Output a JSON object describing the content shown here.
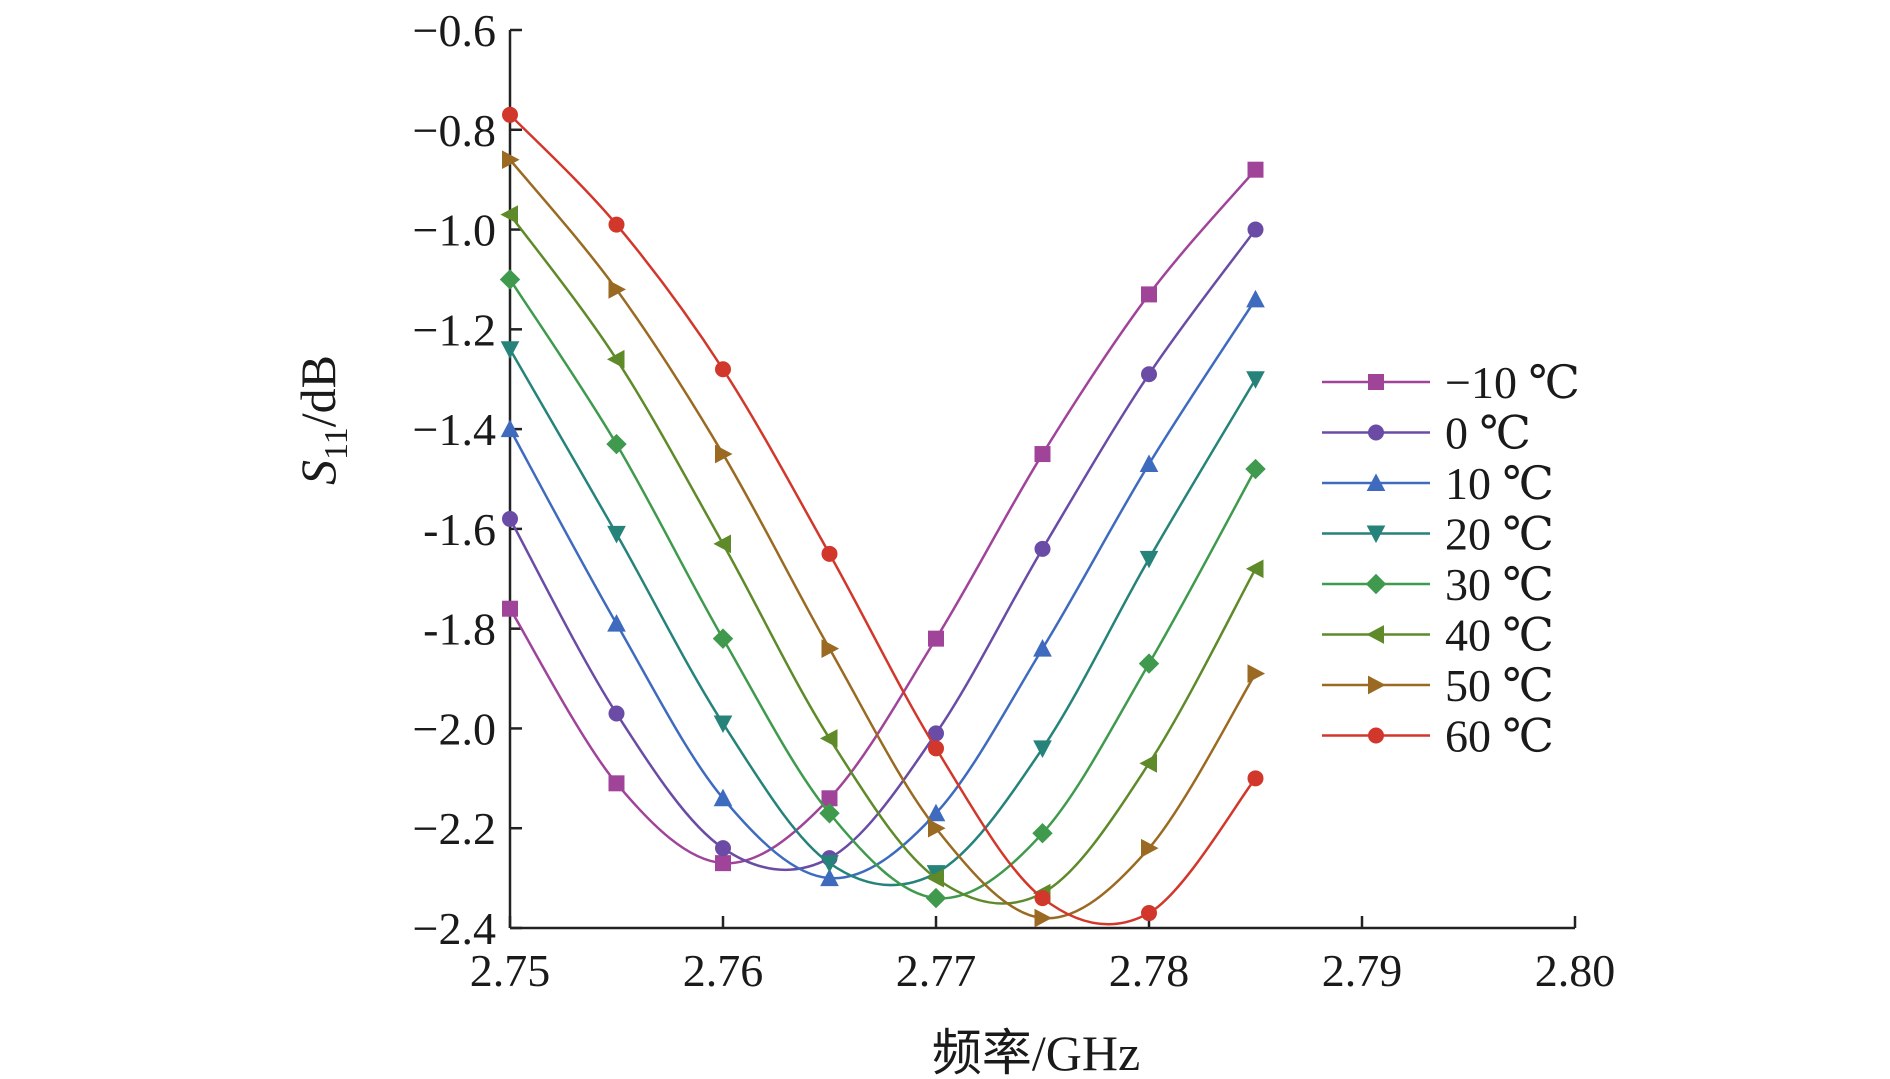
{
  "chart_data": {
    "type": "line",
    "xlabel": "频率/GHz",
    "ylabel": {
      "main": "S",
      "sub": "11",
      "rest": "/dB"
    },
    "xlim": [
      2.75,
      2.8
    ],
    "ylim": [
      -2.4,
      -0.6
    ],
    "x_ticks": [
      2.75,
      2.76,
      2.77,
      2.78,
      2.79,
      2.8
    ],
    "x_tick_labels": [
      "2.75",
      "2.76",
      "2.77",
      "2.78",
      "2.79",
      "2.80"
    ],
    "y_ticks": [
      -0.6,
      -0.8,
      -1.0,
      -1.2,
      -1.4,
      -1.6,
      -1.8,
      -2.0,
      -2.2,
      -2.4
    ],
    "y_tick_labels": [
      "−0.6",
      "−0.8",
      "−1.0",
      "−1.2",
      "−1.4",
      "-1.6",
      "-1.8",
      "−2.0",
      "−2.2",
      "−2.4"
    ],
    "grid": false,
    "legend_position": "right",
    "x": [
      2.75,
      2.755,
      2.76,
      2.765,
      2.77,
      2.775,
      2.78,
      2.785
    ],
    "series": [
      {
        "name": "−10 ℃",
        "color": "#a0449a",
        "marker": "square",
        "values": [
          -1.76,
          -2.11,
          -2.27,
          -2.14,
          -1.82,
          -1.45,
          -1.13,
          -0.88
        ]
      },
      {
        "name": "0 ℃",
        "color": "#6a4ba5",
        "marker": "circle",
        "values": [
          -1.58,
          -1.97,
          -2.24,
          -2.26,
          -2.01,
          -1.64,
          -1.29,
          -1.0
        ]
      },
      {
        "name": "10 ℃",
        "color": "#3f6bbf",
        "marker": "triangle-up",
        "values": [
          -1.4,
          -1.79,
          -2.14,
          -2.3,
          -2.17,
          -1.84,
          -1.47,
          -1.14
        ]
      },
      {
        "name": "20 ℃",
        "color": "#26837a",
        "marker": "triangle-down",
        "values": [
          -1.24,
          -1.61,
          -1.99,
          -2.27,
          -2.29,
          -2.04,
          -1.66,
          -1.3
        ]
      },
      {
        "name": "30 ℃",
        "color": "#3f9a4e",
        "marker": "diamond",
        "values": [
          -1.1,
          -1.43,
          -1.82,
          -2.17,
          -2.34,
          -2.21,
          -1.87,
          -1.48
        ]
      },
      {
        "name": "40 ℃",
        "color": "#5e8a2a",
        "marker": "triangle-left",
        "values": [
          -0.97,
          -1.26,
          -1.63,
          -2.02,
          -2.3,
          -2.33,
          -2.07,
          -1.68
        ]
      },
      {
        "name": "50 ℃",
        "color": "#9a6a22",
        "marker": "triangle-right",
        "values": [
          -0.86,
          -1.12,
          -1.45,
          -1.84,
          -2.2,
          -2.38,
          -2.24,
          -1.89
        ]
      },
      {
        "name": "60 ℃",
        "color": "#d2372b",
        "marker": "circle",
        "values": [
          -0.77,
          -0.99,
          -1.28,
          -1.65,
          -2.04,
          -2.34,
          -2.37,
          -2.1
        ]
      }
    ]
  }
}
